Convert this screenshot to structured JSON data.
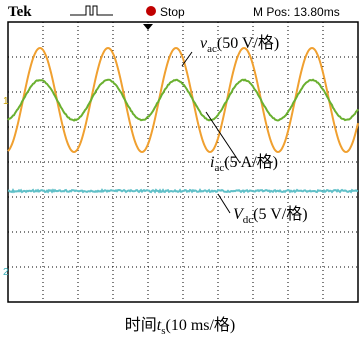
{
  "header": {
    "brand": "Tek",
    "status": "Stop",
    "position": "M Pos: 13.80ms"
  },
  "channels": {
    "ch1": "1",
    "ch2": "2"
  },
  "annotations": [
    {
      "symbol": "v",
      "sub": "ac",
      "scale": "(50 V/格)"
    },
    {
      "symbol": "i",
      "sub": "ac",
      "scale": "(5 A/格)"
    },
    {
      "symbol": "V",
      "sub": "dc",
      "scale": "(5 V/格)"
    }
  ],
  "caption": {
    "text": "时间",
    "symbol": "t",
    "sub": "s",
    "scale": "(10 ms/格)"
  }
}
